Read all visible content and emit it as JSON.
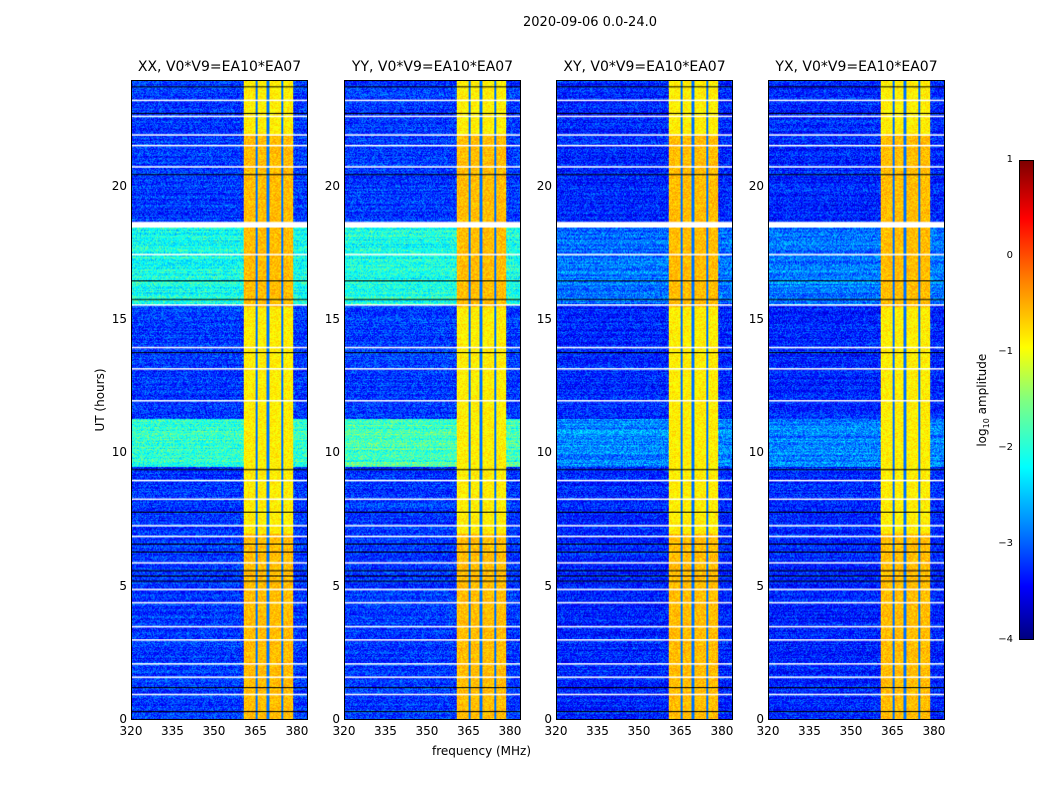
{
  "chart_data": {
    "type": "heatmap",
    "suptitle": "2020-09-06 0.0-24.0",
    "xlabel": "frequency (MHz)",
    "ylabel": "UT (hours)",
    "xlim": [
      320,
      384
    ],
    "ylim": [
      0,
      24
    ],
    "xticks": [
      "320",
      "335",
      "350",
      "365",
      "380"
    ],
    "xtick_values": [
      320,
      335,
      350,
      365,
      380
    ],
    "yticks": [
      "0",
      "5",
      "10",
      "15",
      "20"
    ],
    "ytick_values": [
      0,
      5,
      10,
      15,
      20
    ],
    "panels": [
      {
        "title": "XX, V0*V9=EA10*EA07",
        "baseline": -3.1,
        "elevated": [
          [
            9.5,
            11.3,
            -1.9
          ],
          [
            15.6,
            18.5,
            -2.0
          ]
        ]
      },
      {
        "title": "YY, V0*V9=EA10*EA07",
        "baseline": -3.1,
        "elevated": [
          [
            9.5,
            11.3,
            -1.8
          ],
          [
            15.6,
            18.5,
            -2.0
          ]
        ]
      },
      {
        "title": "XY, V0*V9=EA10*EA07",
        "baseline": -3.2,
        "elevated": [
          [
            9.5,
            11.3,
            -2.7
          ],
          [
            15.6,
            18.5,
            -2.8
          ]
        ]
      },
      {
        "title": "YX, V0*V9=EA10*EA07",
        "baseline": -3.2,
        "elevated": [
          [
            9.5,
            11.3,
            -2.7
          ],
          [
            15.6,
            18.5,
            -2.8
          ]
        ]
      }
    ],
    "rfi_band_mhz": [
      360.5,
      378.6
    ],
    "rfi_level": -0.8,
    "rfi_gaps_mhz": [
      365.3,
      369.5,
      374.8
    ],
    "flagged_times_white": [
      0.95,
      1.6,
      2.1,
      3.0,
      3.5,
      4.4,
      4.9,
      5.9,
      6.9,
      7.3,
      8.3,
      9.0,
      12.0,
      13.2,
      14.0,
      15.6,
      17.5,
      18.6,
      18.7,
      20.8,
      21.6,
      22.0,
      22.7,
      23.3
    ],
    "flagged_times_black": [
      0.3,
      1.2,
      5.2,
      5.4,
      5.6,
      6.3,
      6.6,
      7.8,
      9.4,
      13.8,
      15.8,
      16.5,
      20.5,
      22.8,
      23.8
    ],
    "colorbar": {
      "label": "log10 amplitude",
      "range": [
        -4,
        1
      ],
      "ticks": [
        "1",
        "0",
        "−1",
        "−2",
        "−3",
        "−4"
      ],
      "tick_values": [
        1,
        0,
        -1,
        -2,
        -3,
        -4
      ],
      "colormap": "jet"
    }
  }
}
